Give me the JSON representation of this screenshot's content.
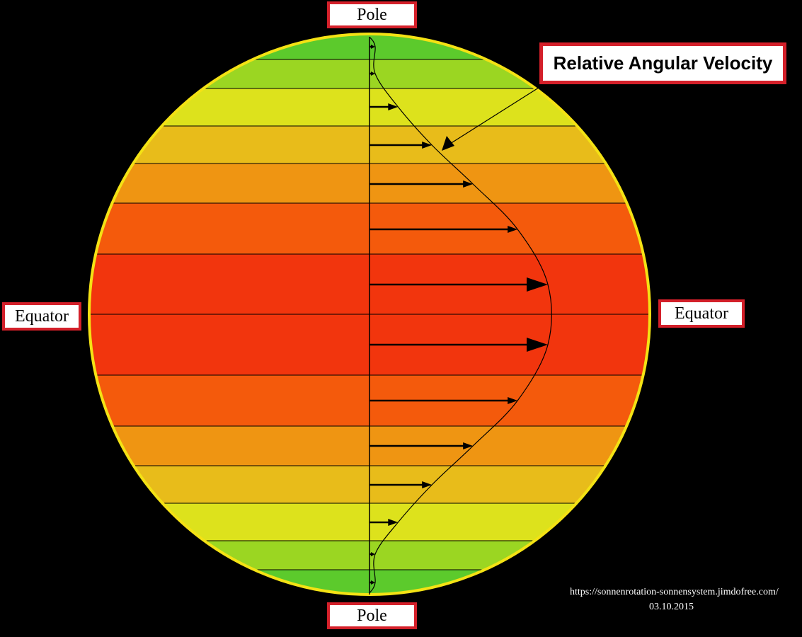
{
  "labels": {
    "pole_top": "Pole",
    "pole_bottom": "Pole",
    "equator_left": "Equator",
    "equator_right": "Equator",
    "velocity": "Relative Angular Velocity"
  },
  "credit": {
    "url": "https://sonnenrotation-sonnensystem.jimdofree.com/",
    "date": "03.10.2015"
  },
  "colors": {
    "background": "#000000",
    "sun_outline": "#f4e214",
    "label_border": "#d4202a",
    "band_colors": [
      "#5cca2c",
      "#9bd622",
      "#dde21c",
      "#e8bc1a",
      "#ef9512",
      "#f45a0c",
      "#f2350d"
    ]
  },
  "diagram": {
    "band_count": 14,
    "arrow_count": 14,
    "relative_velocities": [
      0.01,
      0.03,
      0.16,
      0.35,
      0.58,
      0.83,
      1.0,
      1.0,
      0.83,
      0.58,
      0.35,
      0.16,
      0.03,
      0.01
    ]
  }
}
